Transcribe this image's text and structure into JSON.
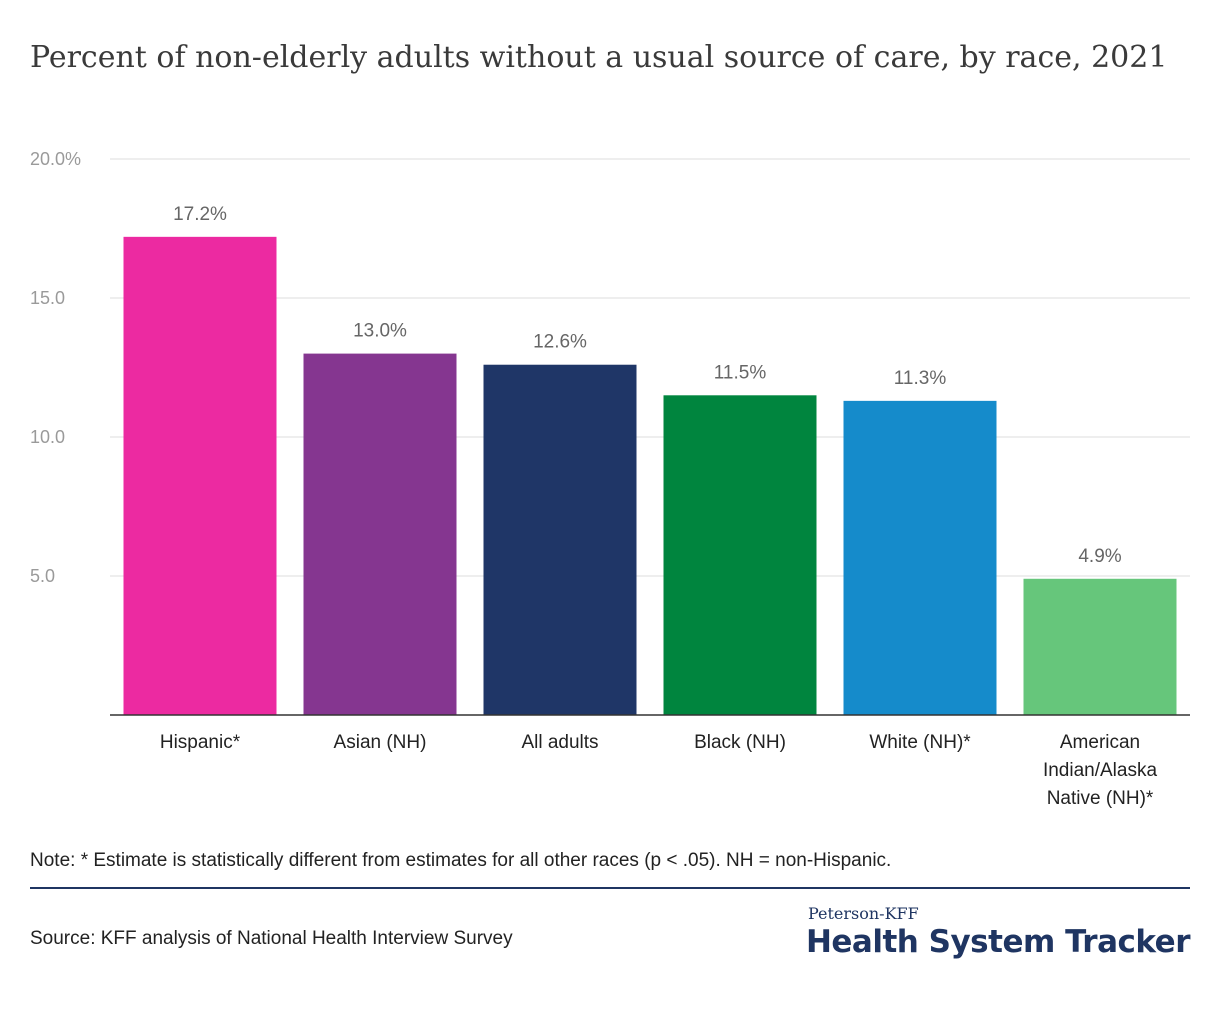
{
  "title": "Percent of non-elderly adults without a usual source of care, by race, 2021",
  "note": "Note: * Estimate is statistically different from estimates for all other races (p < .05). NH = non-Hispanic.",
  "source": "Source: KFF analysis of National Health Interview Survey",
  "brand": {
    "top": "Peterson-KFF",
    "main": "Health System Tracker"
  },
  "chart_data": {
    "type": "bar",
    "categories": [
      "Hispanic*",
      "Asian (NH)",
      "All adults",
      "Black (NH)",
      "White (NH)*",
      "American Indian/Alaska Native (NH)*"
    ],
    "category_lines": [
      [
        "Hispanic*"
      ],
      [
        "Asian (NH)"
      ],
      [
        "All adults"
      ],
      [
        "Black (NH)"
      ],
      [
        "White (NH)*"
      ],
      [
        "American",
        "Indian/Alaska",
        "Native (NH)*"
      ]
    ],
    "values": [
      17.2,
      13.0,
      12.6,
      11.5,
      11.3,
      4.9
    ],
    "data_labels": [
      "17.2%",
      "13.0%",
      "12.6%",
      "11.5%",
      "11.3%",
      "4.9%"
    ],
    "colors": [
      "#ec2aa1",
      "#853690",
      "#1f3667",
      "#00853e",
      "#158bcb",
      "#66c67b"
    ],
    "ylim": [
      0,
      20
    ],
    "yticks": [
      5,
      10,
      15,
      20
    ],
    "ytick_labels": [
      "5.0",
      "10.0",
      "15.0",
      "20.0%"
    ],
    "grid": true,
    "xlabel": "",
    "ylabel": ""
  }
}
